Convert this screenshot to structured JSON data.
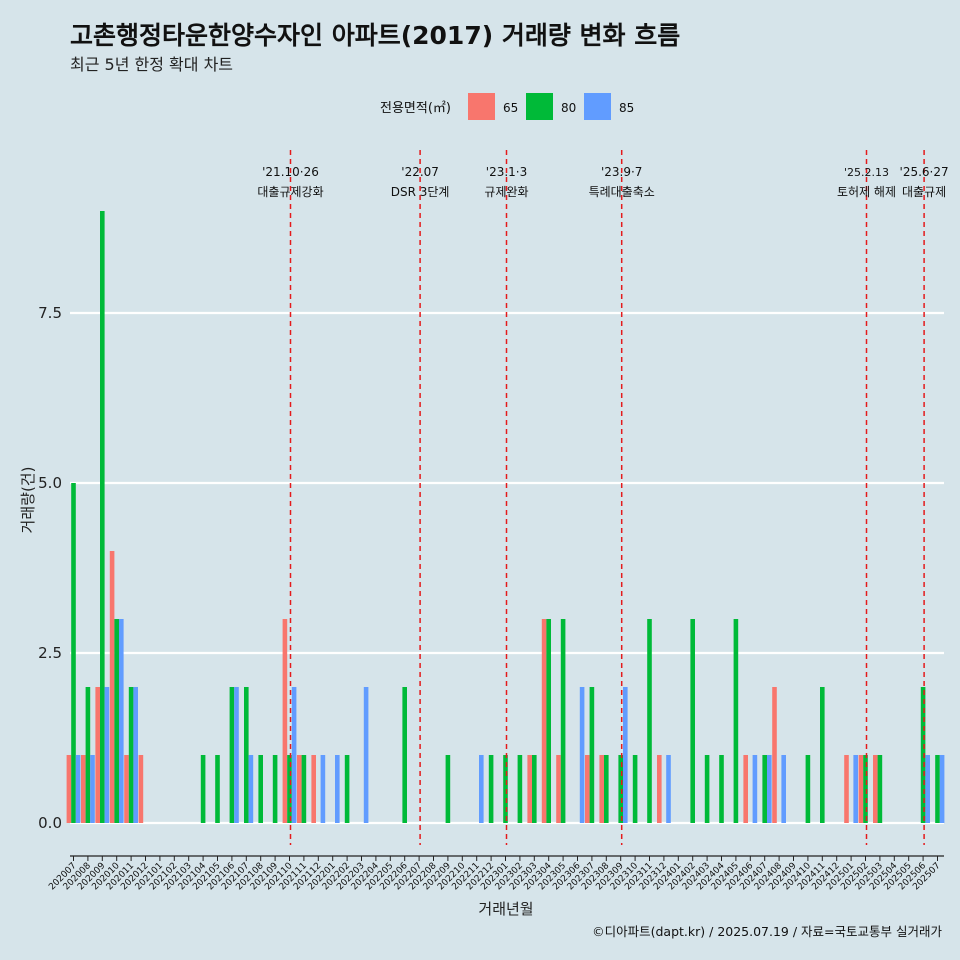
{
  "header": {
    "title": "고촌행정타운한양수자인 아파트(2017) 거래량 변화 흐름",
    "subtitle": "최근 5년 한정 확대 차트"
  },
  "caption": "©디아파트(dapt.kr) / 2025.07.19 / 자료=국토교통부 실거래가",
  "colors": {
    "65": "#f8766d",
    "80": "#00ba38",
    "85": "#619cff",
    "background": "#d6e4ea",
    "grid": "#ffffff",
    "vline": "#e41a1c"
  },
  "chart_data": {
    "type": "bar",
    "xlabel": "거래년월",
    "ylabel": "거래량(건)",
    "ylim": [
      -0.5,
      9.3
    ],
    "yticks": [
      {
        "value": 0,
        "label": "0.0"
      },
      {
        "value": 2.5,
        "label": "2.5"
      },
      {
        "value": 5,
        "label": "5.0"
      },
      {
        "value": 7.5,
        "label": "7.5"
      }
    ],
    "legend": {
      "title": "전용면적(㎡)",
      "position": "top",
      "entries": [
        "65",
        "80",
        "85"
      ]
    },
    "categories": [
      "202007",
      "202008",
      "202009",
      "202010",
      "202011",
      "202012",
      "202101",
      "202102",
      "202103",
      "202104",
      "202105",
      "202106",
      "202107",
      "202108",
      "202109",
      "202110",
      "202111",
      "202112",
      "202201",
      "202202",
      "202203",
      "202204",
      "202205",
      "202206",
      "202207",
      "202208",
      "202209",
      "202210",
      "202211",
      "202212",
      "202301",
      "202302",
      "202303",
      "202304",
      "202305",
      "202306",
      "202307",
      "202308",
      "202309",
      "202310",
      "202311",
      "202312",
      "202401",
      "202402",
      "202403",
      "202404",
      "202405",
      "202406",
      "202407",
      "202408",
      "202409",
      "202410",
      "202411",
      "202412",
      "202501",
      "202502",
      "202503",
      "202504",
      "202505",
      "202506",
      "202507"
    ],
    "series": [
      {
        "name": "65",
        "values": [
          1,
          1,
          2,
          4,
          1,
          1,
          0,
          0,
          0,
          0,
          0,
          0,
          0,
          0,
          0,
          3,
          1,
          1,
          0,
          0,
          0,
          0,
          0,
          0,
          0,
          0,
          0,
          0,
          0,
          0,
          0,
          0,
          1,
          3,
          1,
          0,
          1,
          1,
          0,
          0,
          0,
          1,
          0,
          0,
          0,
          0,
          0,
          1,
          0,
          2,
          0,
          0,
          0,
          0,
          1,
          1,
          1,
          0,
          0,
          0,
          0
        ]
      },
      {
        "name": "80",
        "values": [
          5,
          2,
          9,
          3,
          2,
          0,
          0,
          0,
          0,
          1,
          1,
          2,
          2,
          1,
          1,
          1,
          1,
          0,
          0,
          1,
          0,
          0,
          0,
          2,
          0,
          0,
          1,
          0,
          0,
          1,
          1,
          1,
          1,
          3,
          3,
          0,
          2,
          1,
          1,
          1,
          3,
          0,
          0,
          3,
          1,
          1,
          3,
          0,
          1,
          0,
          0,
          1,
          2,
          0,
          0,
          1,
          1,
          0,
          0,
          2,
          1
        ]
      },
      {
        "name": "85",
        "values": [
          1,
          1,
          2,
          3,
          2,
          0,
          0,
          0,
          0,
          0,
          0,
          2,
          1,
          0,
          0,
          2,
          0,
          1,
          1,
          0,
          2,
          0,
          0,
          0,
          0,
          0,
          0,
          0,
          1,
          0,
          0,
          0,
          0,
          0,
          0,
          2,
          0,
          0,
          2,
          0,
          0,
          1,
          0,
          0,
          0,
          0,
          0,
          1,
          1,
          1,
          0,
          0,
          0,
          0,
          1,
          0,
          0,
          0,
          0,
          1,
          1
        ]
      }
    ],
    "annotations": [
      {
        "x": "202110",
        "date": "'21.10·26",
        "label": "대출규제강화"
      },
      {
        "x": "202207",
        "date": "'22.07",
        "label": "DSR 3단계"
      },
      {
        "x": "202301",
        "date": "'23.1·3",
        "label": "규제완화"
      },
      {
        "x": "202309",
        "date": "'23.9·7",
        "label": "특례대출축소"
      },
      {
        "x": "202502",
        "date": "'25.2.13",
        "label": "토허제 해제",
        "small": true
      },
      {
        "x": "202506",
        "date": "'25.6·27",
        "label": "대출규제"
      }
    ]
  }
}
